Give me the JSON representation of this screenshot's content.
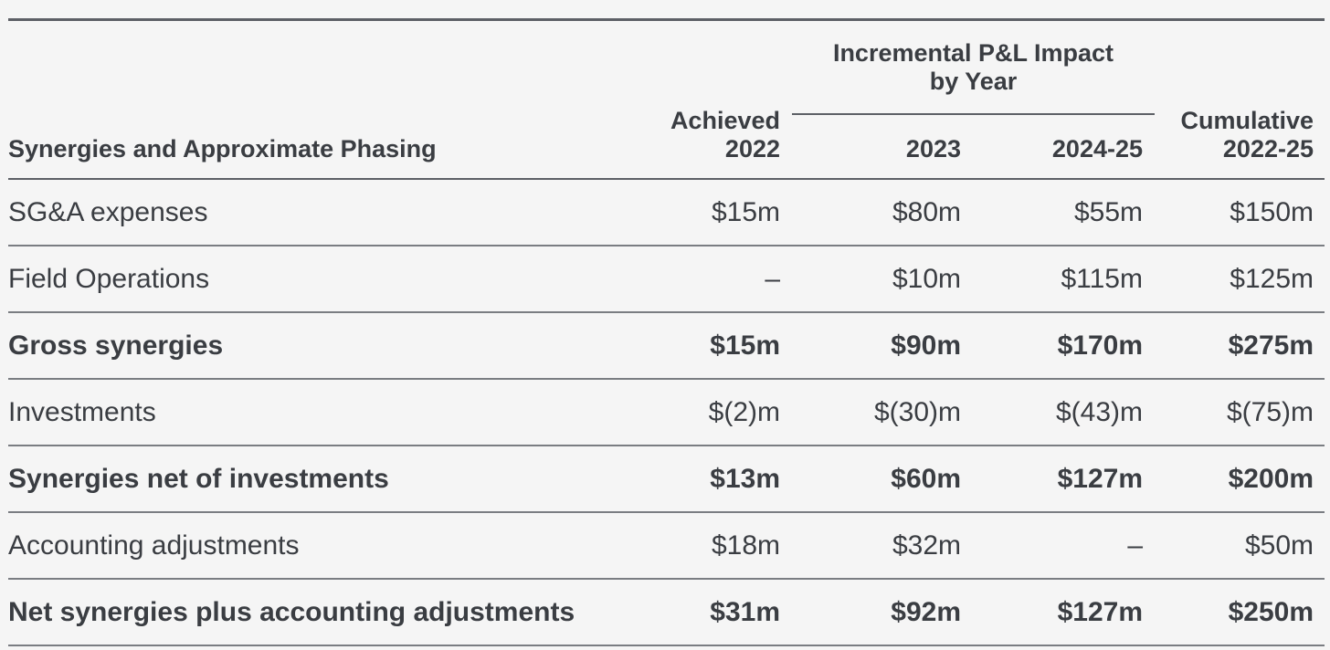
{
  "table": {
    "header": {
      "row_label": "Synergies and Approximate Phasing",
      "group_title_line1": "Incremental P&L Impact",
      "group_title_line2": "by Year",
      "col_achieved_line1": "Achieved",
      "col_achieved_line2": "2022",
      "col_2023": "2023",
      "col_2024_25": "2024-25",
      "col_cumulative_line1": "Cumulative",
      "col_cumulative_line2": "2022-25"
    },
    "rows": [
      {
        "label": "SG&A expenses",
        "achieved_2022": "$15m",
        "y2023": "$80m",
        "y2024_25": "$55m",
        "cumulative": "$150m",
        "bold": false
      },
      {
        "label": "Field Operations",
        "achieved_2022": "–",
        "y2023": "$10m",
        "y2024_25": "$115m",
        "cumulative": "$125m",
        "bold": false
      },
      {
        "label": "Gross synergies",
        "achieved_2022": "$15m",
        "y2023": "$90m",
        "y2024_25": "$170m",
        "cumulative": "$275m",
        "bold": true
      },
      {
        "label": "Investments",
        "achieved_2022": "$(2)m",
        "y2023": "$(30)m",
        "y2024_25": "$(43)m",
        "cumulative": "$(75)m",
        "bold": false
      },
      {
        "label": "Synergies net of investments",
        "achieved_2022": "$13m",
        "y2023": "$60m",
        "y2024_25": "$127m",
        "cumulative": "$200m",
        "bold": true
      },
      {
        "label": "Accounting adjustments",
        "achieved_2022": "$18m",
        "y2023": "$32m",
        "y2024_25": "–",
        "cumulative": "$50m",
        "bold": false
      },
      {
        "label": "Net synergies plus accounting adjustments",
        "achieved_2022": "$31m",
        "y2023": "$92m",
        "y2024_25": "$127m",
        "cumulative": "$250m",
        "bold": true
      }
    ]
  },
  "colors": {
    "text": "#3a3d42",
    "rule": "#5d6066",
    "background": "#f5f5f5"
  }
}
